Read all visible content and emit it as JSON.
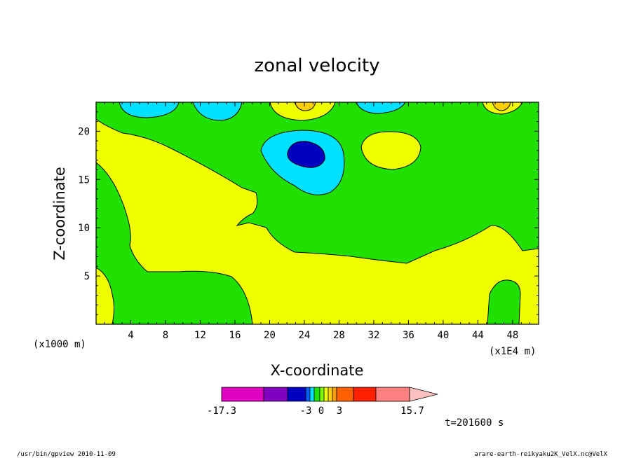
{
  "chart_data": {
    "type": "heatmap",
    "title": "zonal velocity",
    "xlabel": "X-coordinate",
    "ylabel": "Z-coordinate",
    "x_scale_note": "(x1E4 m)",
    "y_scale_note": "(x1000 m)",
    "x_ticks": [
      "4",
      "8",
      "12",
      "16",
      "20",
      "24",
      "28",
      "32",
      "36",
      "40",
      "44",
      "48"
    ],
    "y_ticks": [
      "5",
      "10",
      "15",
      "20"
    ],
    "xlim": [
      0,
      51
    ],
    "ylim": [
      0,
      23
    ],
    "colorbar": {
      "labels": [
        "-17.3",
        "-3",
        "0",
        "3",
        "15.7"
      ],
      "colors": [
        "#e000c0",
        "#8000c0",
        "#0000c0",
        "#0060ff",
        "#00e0ff",
        "#20e000",
        "#80ff00",
        "#f0ff00",
        "#ffd000",
        "#ffa000",
        "#ff6000",
        "#ff2000",
        "#ff8080",
        "#ffc0c0"
      ]
    },
    "time_label": "t=201600 s"
  },
  "footer": {
    "left": "/usr/bin/gpview   2010-11-09",
    "right": "arare-earth-reikyaku2K_VelX.nc@VelX"
  }
}
